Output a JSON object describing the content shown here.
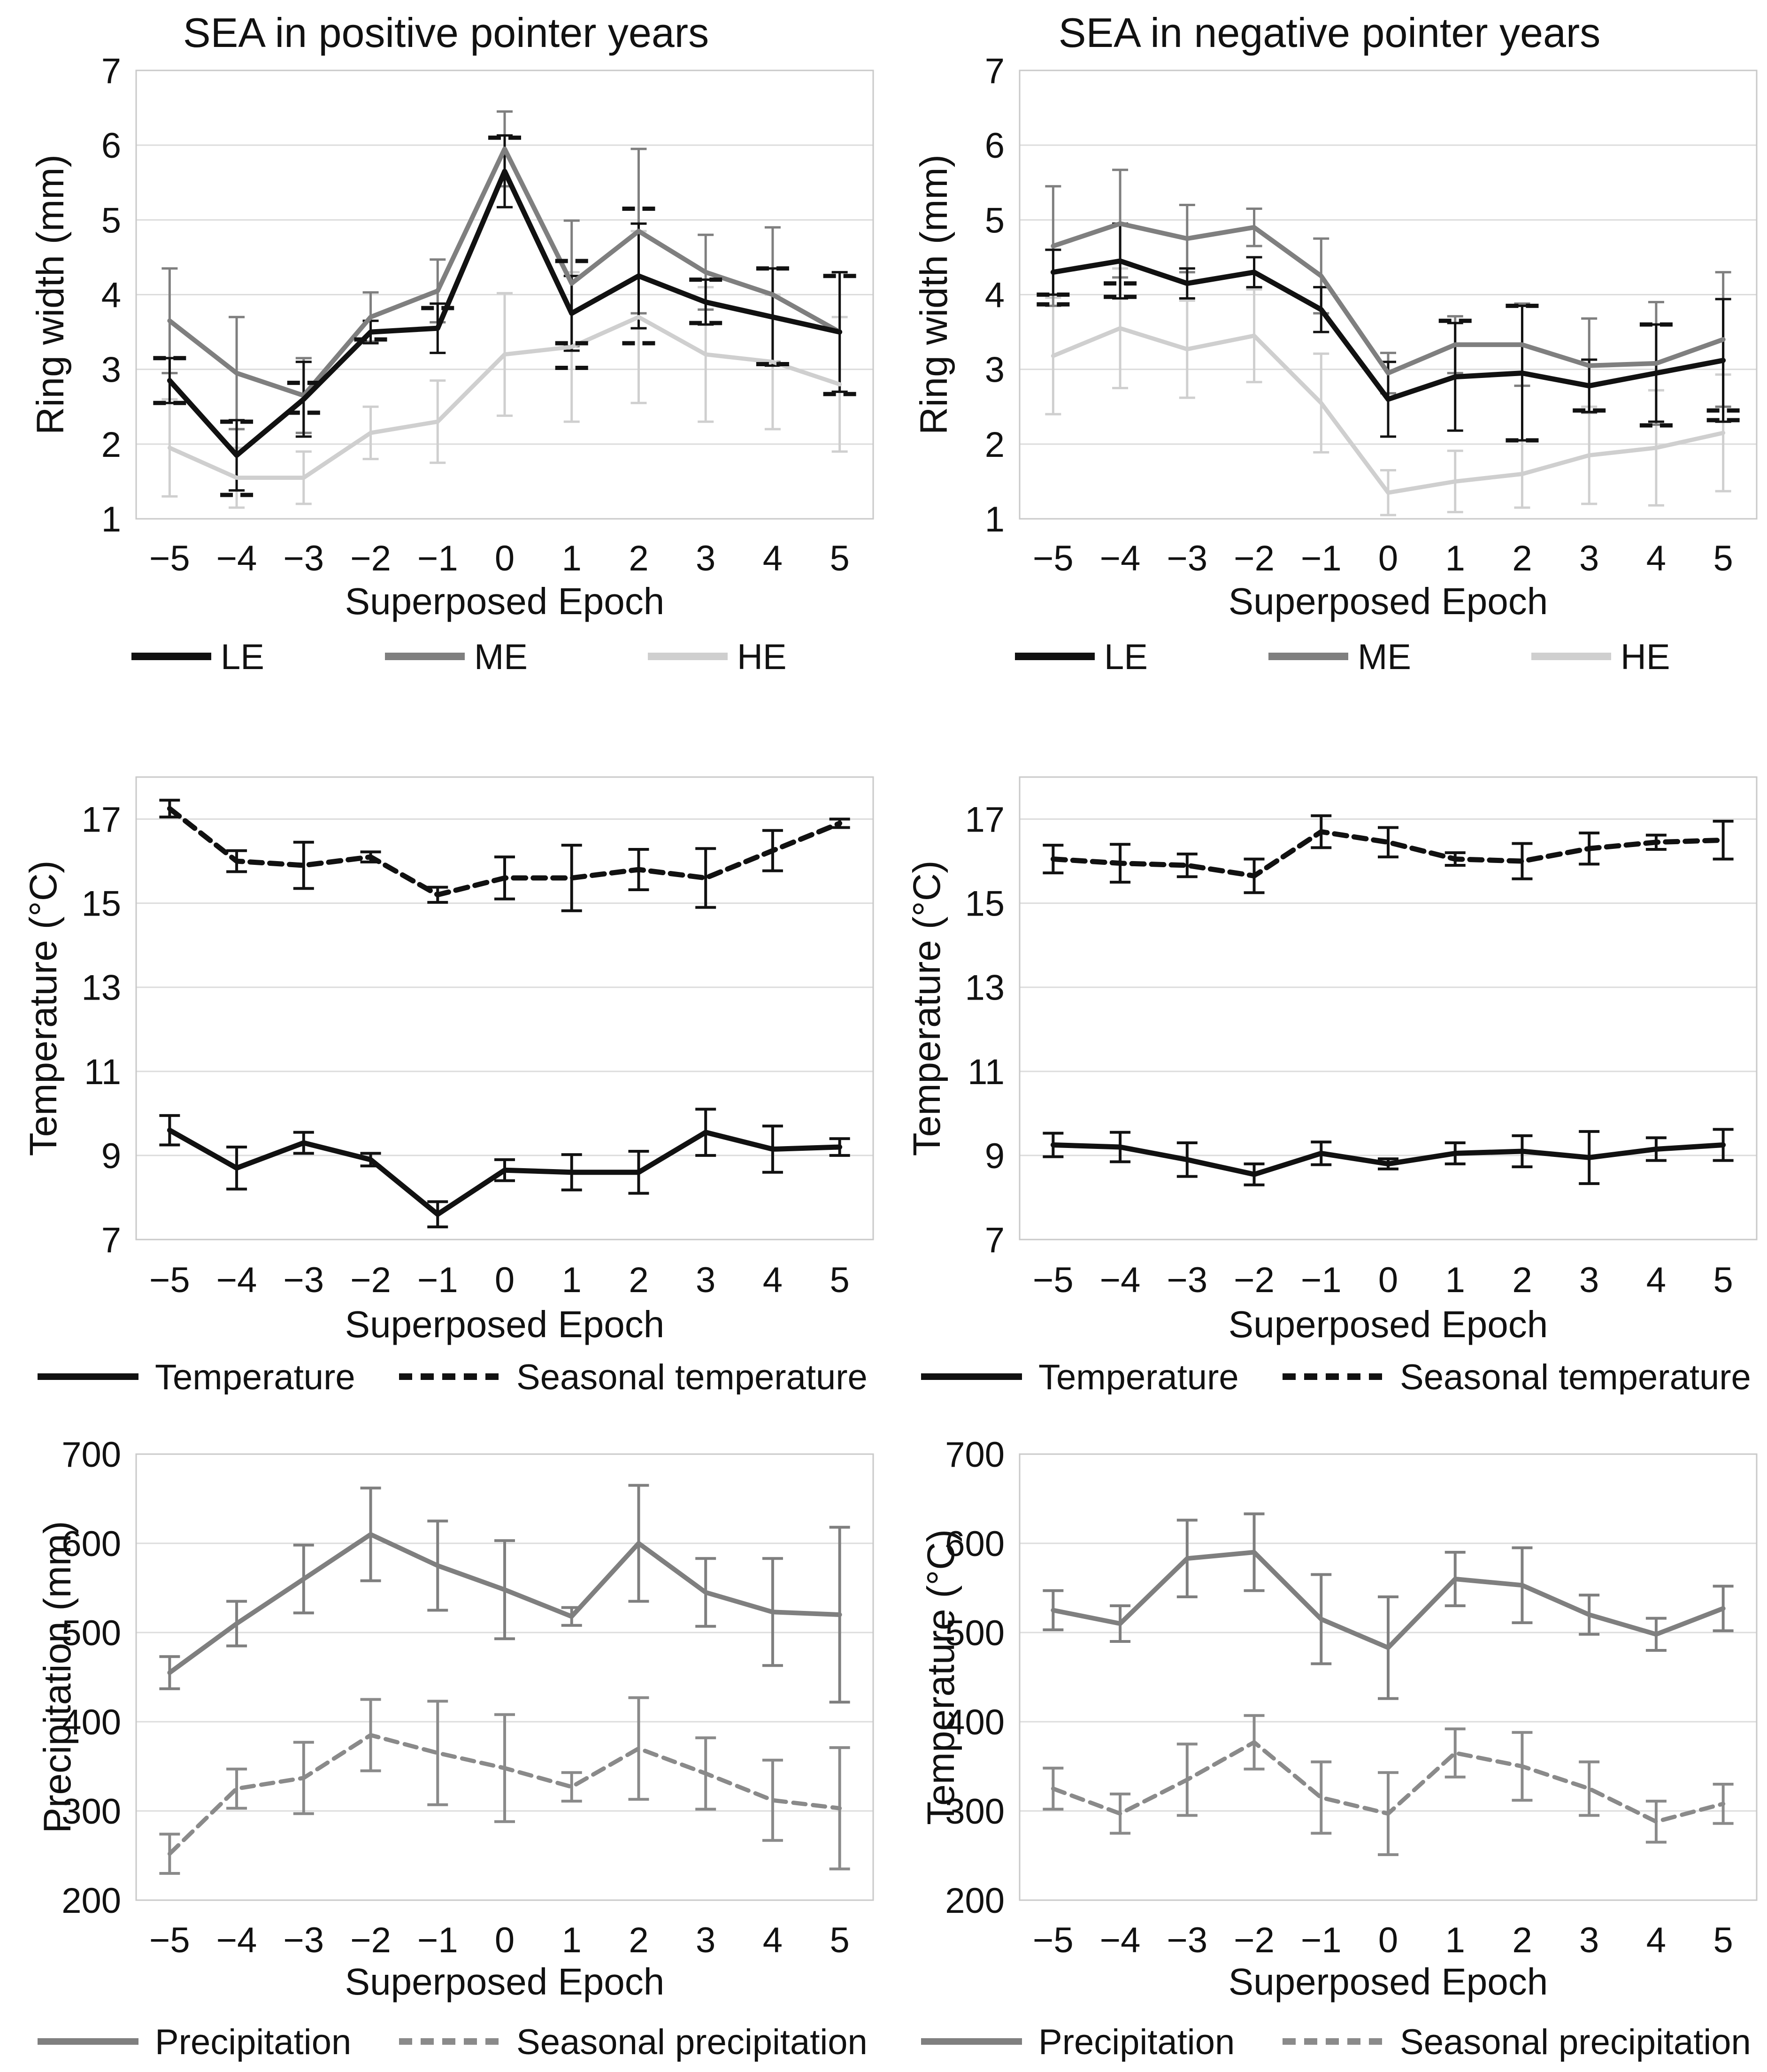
{
  "figure": {
    "background": "#ffffff",
    "grid_color": "#dcdcdc",
    "border_color": "#c9c9c9",
    "text_color": "#111111"
  },
  "chart_data": [
    {
      "id": "ring-width-positive",
      "type": "line",
      "row": 0,
      "col": 0,
      "title": "SEA in positive pointer years",
      "ylabel": "Ring width (mm)",
      "xlabel": "Superposed Epoch",
      "ylim": [
        1,
        7
      ],
      "yticks": [
        7,
        6,
        5,
        4,
        3,
        2,
        1
      ],
      "x": [
        -5,
        -4,
        -3,
        -2,
        -1,
        0,
        1,
        2,
        3,
        4,
        5
      ],
      "x_labels": [
        "−5",
        "−4",
        "−3",
        "−2",
        "−1",
        "0",
        "1",
        "2",
        "3",
        "4",
        "5"
      ],
      "grid": true,
      "legend_position": "bottom",
      "series": [
        {
          "name": "LE",
          "color": "#111111",
          "dashed": false,
          "stroke_width": 11,
          "values": [
            2.85,
            1.85,
            2.6,
            3.5,
            3.55,
            5.65,
            3.75,
            4.25,
            3.9,
            3.7,
            3.5
          ],
          "errors": [
            0.3,
            0.47,
            0.5,
            0.15,
            0.33,
            0.48,
            0.5,
            0.7,
            0.3,
            0.65,
            0.8
          ]
        },
        {
          "name": "ME",
          "color": "#7f7f7f",
          "dashed": false,
          "stroke_width": 10,
          "values": [
            3.65,
            2.95,
            2.65,
            3.7,
            4.05,
            5.95,
            4.15,
            4.85,
            4.3,
            4.0,
            3.5
          ],
          "errors": [
            0.7,
            0.75,
            0.5,
            0.33,
            0.42,
            0.5,
            0.84,
            1.1,
            0.5,
            0.9,
            0.8
          ]
        },
        {
          "name": "HE",
          "color": "#cfcfcf",
          "dashed": false,
          "stroke_width": 9,
          "values": [
            1.95,
            1.55,
            1.55,
            2.15,
            2.3,
            3.2,
            3.3,
            3.7,
            3.2,
            3.1,
            2.8
          ],
          "errors": [
            0.65,
            0.4,
            0.35,
            0.35,
            0.55,
            0.82,
            1.0,
            1.15,
            0.9,
            0.9,
            0.9
          ]
        }
      ],
      "dash_marks": {
        "color": "#111111",
        "points": [
          [
            -5,
            3.15
          ],
          [
            -5,
            2.55
          ],
          [
            -4,
            2.3
          ],
          [
            -4,
            1.32
          ],
          [
            -3,
            2.82
          ],
          [
            -3,
            2.42
          ],
          [
            -2,
            3.4
          ],
          [
            -1,
            3.82
          ],
          [
            0,
            6.1
          ],
          [
            1,
            4.45
          ],
          [
            1,
            3.35
          ],
          [
            1,
            3.02
          ],
          [
            2,
            5.15
          ],
          [
            2,
            3.35
          ],
          [
            3,
            4.2
          ],
          [
            3,
            3.62
          ],
          [
            4,
            4.35
          ],
          [
            4,
            3.07
          ],
          [
            5,
            4.25
          ],
          [
            5,
            2.67
          ]
        ]
      },
      "legend": [
        {
          "label": "LE",
          "color": "#111111",
          "dashed": false
        },
        {
          "label": "ME",
          "color": "#7f7f7f",
          "dashed": false
        },
        {
          "label": "HE",
          "color": "#cfcfcf",
          "dashed": false
        }
      ]
    },
    {
      "id": "ring-width-negative",
      "type": "line",
      "row": 0,
      "col": 1,
      "title": "SEA in negative pointer years",
      "ylabel": "Ring width (mm)",
      "xlabel": "Superposed Epoch",
      "ylim": [
        1,
        7
      ],
      "yticks": [
        7,
        6,
        5,
        4,
        3,
        2,
        1
      ],
      "x": [
        -5,
        -4,
        -3,
        -2,
        -1,
        0,
        1,
        2,
        3,
        4,
        5
      ],
      "x_labels": [
        "−5",
        "−4",
        "−3",
        "−2",
        "−1",
        "0",
        "1",
        "2",
        "3",
        "4",
        "5"
      ],
      "grid": true,
      "legend_position": "bottom",
      "series": [
        {
          "name": "LE",
          "color": "#111111",
          "dashed": false,
          "stroke_width": 11,
          "values": [
            4.3,
            4.45,
            4.15,
            4.3,
            3.8,
            2.6,
            2.9,
            2.95,
            2.78,
            2.95,
            3.12
          ],
          "errors": [
            0.3,
            0.5,
            0.2,
            0.2,
            0.3,
            0.5,
            0.72,
            0.9,
            0.35,
            0.65,
            0.82
          ]
        },
        {
          "name": "ME",
          "color": "#7f7f7f",
          "dashed": false,
          "stroke_width": 10,
          "values": [
            4.65,
            4.95,
            4.75,
            4.9,
            4.25,
            2.95,
            3.33,
            3.33,
            3.05,
            3.08,
            3.4
          ],
          "errors": [
            0.8,
            0.72,
            0.45,
            0.25,
            0.5,
            0.27,
            0.38,
            0.55,
            0.63,
            0.82,
            0.9
          ]
        },
        {
          "name": "HE",
          "color": "#cfcfcf",
          "dashed": false,
          "stroke_width": 9,
          "values": [
            3.18,
            3.55,
            3.27,
            3.45,
            2.55,
            1.35,
            1.5,
            1.6,
            1.85,
            1.95,
            2.15
          ],
          "errors": [
            0.78,
            0.8,
            0.65,
            0.62,
            0.66,
            0.3,
            0.41,
            0.45,
            0.65,
            0.77,
            0.78
          ]
        }
      ],
      "dash_marks": {
        "color": "#111111",
        "points": [
          [
            -5,
            4.0
          ],
          [
            -5,
            3.87
          ],
          [
            -4,
            4.15
          ],
          [
            -4,
            3.97
          ],
          [
            1,
            3.65
          ],
          [
            2,
            3.85
          ],
          [
            2,
            2.05
          ],
          [
            3,
            2.45
          ],
          [
            4,
            3.6
          ],
          [
            4,
            2.25
          ],
          [
            5,
            2.45
          ],
          [
            5,
            2.32
          ]
        ]
      },
      "legend": [
        {
          "label": "LE",
          "color": "#111111",
          "dashed": false
        },
        {
          "label": "ME",
          "color": "#7f7f7f",
          "dashed": false
        },
        {
          "label": "HE",
          "color": "#cfcfcf",
          "dashed": false
        }
      ]
    },
    {
      "id": "temperature-positive",
      "type": "line",
      "row": 1,
      "col": 0,
      "title": null,
      "ylabel": "Temperature (°C)",
      "xlabel": "Superposed Epoch",
      "ylim": [
        7,
        18
      ],
      "yticks": [
        17,
        15,
        13,
        11,
        9,
        7
      ],
      "x": [
        -5,
        -4,
        -3,
        -2,
        -1,
        0,
        1,
        2,
        3,
        4,
        5
      ],
      "x_labels": [
        "−5",
        "−4",
        "−3",
        "−2",
        "−1",
        "0",
        "1",
        "2",
        "3",
        "4",
        "5"
      ],
      "grid": true,
      "legend_position": "bottom",
      "series": [
        {
          "name": "Temperature",
          "color": "#111111",
          "dashed": false,
          "stroke_width": 11,
          "values": [
            9.6,
            8.7,
            9.3,
            8.9,
            7.6,
            8.65,
            8.6,
            8.6,
            9.55,
            9.15,
            9.2
          ],
          "errors": [
            0.35,
            0.5,
            0.25,
            0.15,
            0.3,
            0.25,
            0.42,
            0.5,
            0.55,
            0.55,
            0.2
          ]
        },
        {
          "name": "Seasonal temperature",
          "color": "#111111",
          "dashed": true,
          "stroke_width": 11,
          "values": [
            17.25,
            16.0,
            15.9,
            16.1,
            15.2,
            15.6,
            15.6,
            15.8,
            15.6,
            16.25,
            16.9
          ],
          "errors": [
            0.2,
            0.25,
            0.55,
            0.12,
            0.18,
            0.5,
            0.78,
            0.48,
            0.7,
            0.48,
            0.1
          ]
        }
      ],
      "legend": [
        {
          "label": "Temperature",
          "color": "#111111",
          "dashed": false
        },
        {
          "label": "Seasonal temperature",
          "color": "#111111",
          "dashed": true
        }
      ]
    },
    {
      "id": "temperature-negative",
      "type": "line",
      "row": 1,
      "col": 1,
      "title": null,
      "ylabel": "Temperature (°C)",
      "xlabel": "Superposed Epoch",
      "ylim": [
        7,
        18
      ],
      "yticks": [
        17,
        15,
        13,
        11,
        9,
        7
      ],
      "x": [
        -5,
        -4,
        -3,
        -2,
        -1,
        0,
        1,
        2,
        3,
        4,
        5
      ],
      "x_labels": [
        "−5",
        "−4",
        "−3",
        "−2",
        "−1",
        "0",
        "1",
        "2",
        "3",
        "4",
        "5"
      ],
      "grid": true,
      "legend_position": "bottom",
      "series": [
        {
          "name": "Temperature",
          "color": "#111111",
          "dashed": false,
          "stroke_width": 11,
          "values": [
            9.25,
            9.2,
            8.9,
            8.55,
            9.05,
            8.8,
            9.05,
            9.1,
            8.95,
            9.15,
            9.25
          ],
          "errors": [
            0.28,
            0.35,
            0.4,
            0.25,
            0.27,
            0.12,
            0.25,
            0.37,
            0.62,
            0.27,
            0.37
          ]
        },
        {
          "name": "Seasonal temperature",
          "color": "#111111",
          "dashed": true,
          "stroke_width": 11,
          "values": [
            16.05,
            15.95,
            15.9,
            15.65,
            16.7,
            16.45,
            16.05,
            16.0,
            16.3,
            16.45,
            16.5
          ],
          "errors": [
            0.33,
            0.45,
            0.27,
            0.4,
            0.38,
            0.35,
            0.15,
            0.42,
            0.37,
            0.17,
            0.45
          ]
        }
      ],
      "legend": [
        {
          "label": "Temperature",
          "color": "#111111",
          "dashed": false
        },
        {
          "label": "Seasonal temperature",
          "color": "#111111",
          "dashed": true
        }
      ]
    },
    {
      "id": "precipitation-positive",
      "type": "line",
      "row": 2,
      "col": 0,
      "title": null,
      "ylabel": "Precipitation (mm)",
      "xlabel": "Superposed Epoch",
      "ylim": [
        200,
        700
      ],
      "yticks": [
        700,
        600,
        500,
        400,
        300,
        200
      ],
      "x": [
        -5,
        -4,
        -3,
        -2,
        -1,
        0,
        1,
        2,
        3,
        4,
        5
      ],
      "x_labels": [
        "−5",
        "−4",
        "−3",
        "−2",
        "−1",
        "0",
        "1",
        "2",
        "3",
        "4",
        "5"
      ],
      "grid": true,
      "legend_position": "bottom",
      "series": [
        {
          "name": "Precipitation",
          "color": "#7f7f7f",
          "dashed": false,
          "stroke_width": 10,
          "values": [
            455,
            510,
            560,
            610,
            575,
            548,
            518,
            600,
            545,
            523,
            520
          ],
          "errors": [
            18,
            25,
            38,
            52,
            50,
            55,
            10,
            65,
            38,
            60,
            98
          ]
        },
        {
          "name": "Seasonal precipitation",
          "color": "#8a8a8a",
          "dashed": true,
          "stroke_width": 9,
          "values": [
            252,
            325,
            337,
            385,
            365,
            348,
            327,
            370,
            342,
            312,
            303
          ],
          "errors": [
            22,
            22,
            40,
            40,
            58,
            60,
            16,
            57,
            40,
            45,
            68
          ]
        }
      ],
      "legend": [
        {
          "label": "Precipitation",
          "color": "#7f7f7f",
          "dashed": false
        },
        {
          "label": "Seasonal precipitation",
          "color": "#8a8a8a",
          "dashed": true
        }
      ]
    },
    {
      "id": "precipitation-negative",
      "type": "line",
      "row": 2,
      "col": 1,
      "title": null,
      "ylabel": "Temperature (°C)",
      "xlabel": "Superposed Epoch",
      "ylim": [
        200,
        700
      ],
      "yticks": [
        700,
        600,
        500,
        400,
        300,
        200
      ],
      "x": [
        -5,
        -4,
        -3,
        -2,
        -1,
        0,
        1,
        2,
        3,
        4,
        5
      ],
      "x_labels": [
        "−5",
        "−4",
        "−3",
        "−2",
        "−1",
        "0",
        "1",
        "2",
        "3",
        "4",
        "5"
      ],
      "grid": true,
      "legend_position": "bottom",
      "series": [
        {
          "name": "Precipitation",
          "color": "#7f7f7f",
          "dashed": false,
          "stroke_width": 10,
          "values": [
            525,
            510,
            583,
            590,
            515,
            483,
            560,
            553,
            520,
            498,
            527
          ],
          "errors": [
            22,
            20,
            43,
            43,
            50,
            57,
            30,
            42,
            22,
            18,
            25
          ]
        },
        {
          "name": "Seasonal precipitation",
          "color": "#8a8a8a",
          "dashed": true,
          "stroke_width": 9,
          "values": [
            325,
            297,
            335,
            377,
            315,
            297,
            365,
            350,
            325,
            288,
            308
          ],
          "errors": [
            23,
            22,
            40,
            30,
            40,
            46,
            27,
            38,
            30,
            23,
            22
          ]
        }
      ],
      "legend": [
        {
          "label": "Precipitation",
          "color": "#7f7f7f",
          "dashed": false
        },
        {
          "label": "Seasonal precipitation",
          "color": "#8a8a8a",
          "dashed": true
        }
      ]
    }
  ]
}
